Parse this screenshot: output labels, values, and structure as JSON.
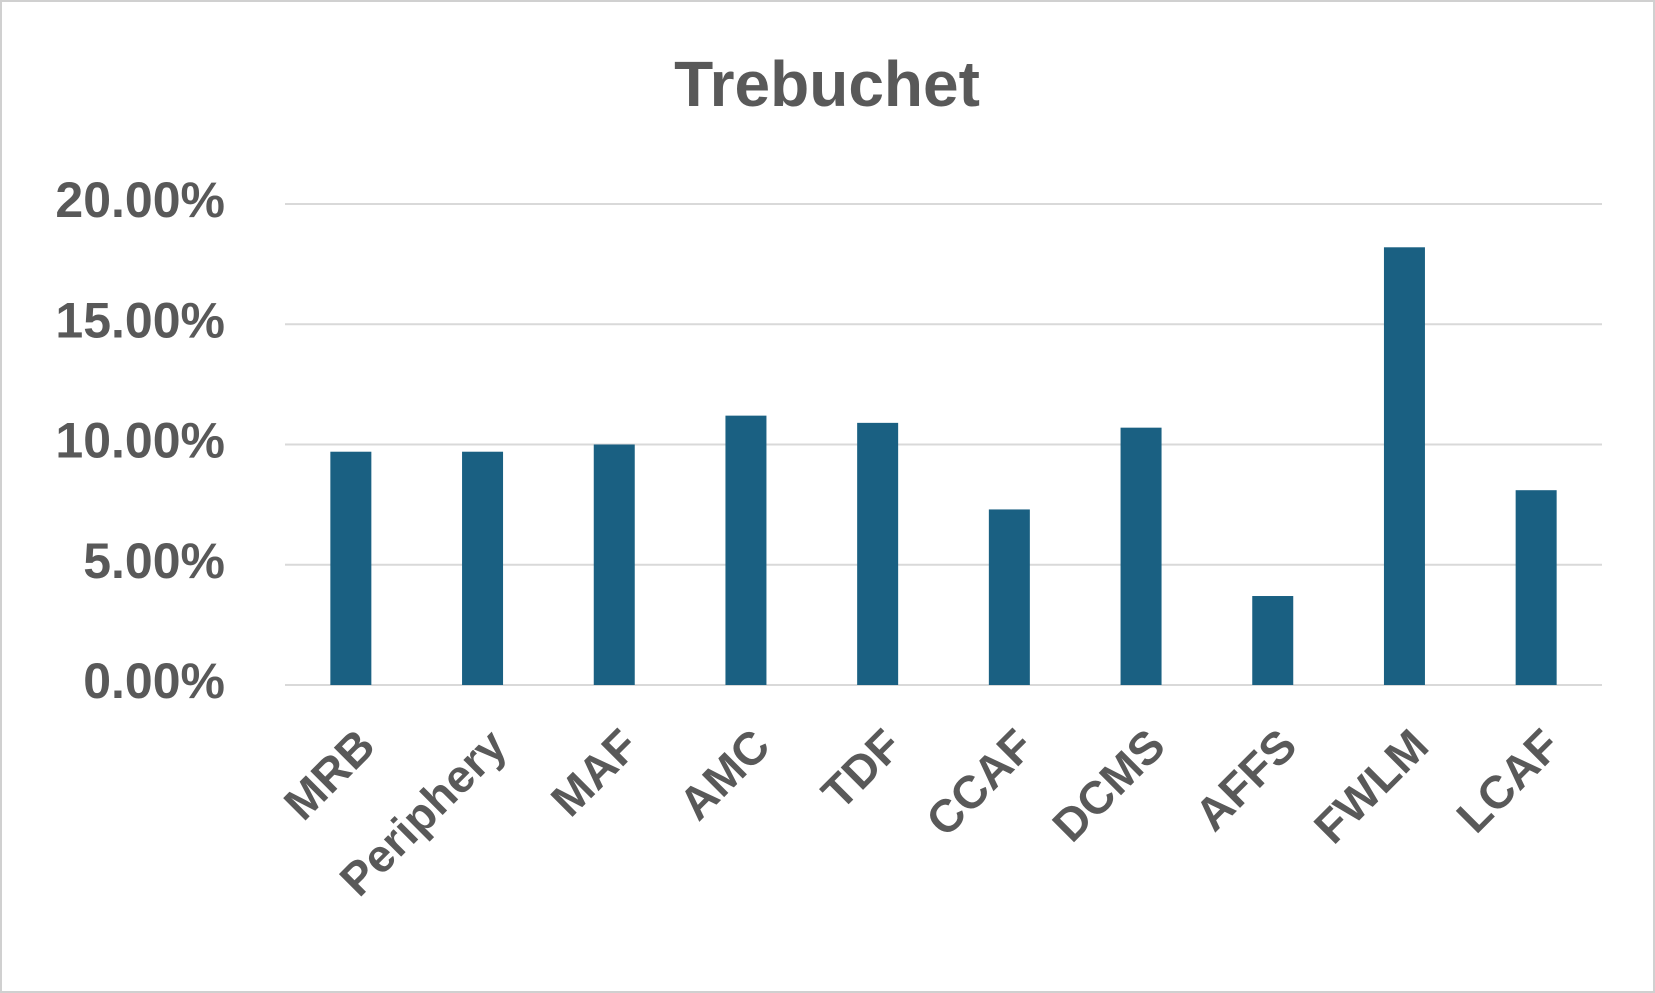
{
  "chart_data": {
    "type": "bar",
    "title": "Trebuchet",
    "categories": [
      "MRB",
      "Periphery",
      "MAF",
      "AMC",
      "TDF",
      "CCAF",
      "DCMS",
      "AFFS",
      "FWLM",
      "LCAF"
    ],
    "values": [
      9.7,
      9.7,
      10.0,
      11.2,
      10.9,
      7.3,
      10.7,
      3.7,
      18.2,
      8.1
    ],
    "color": "#1a6082",
    "ylim": [
      0,
      20
    ],
    "yticks": [
      {
        "value": 0,
        "label": "0.00%"
      },
      {
        "value": 5,
        "label": "5.00%"
      },
      {
        "value": 10,
        "label": "10.00%"
      },
      {
        "value": 15,
        "label": "15.00%"
      },
      {
        "value": 20,
        "label": "20.00%"
      }
    ],
    "grid": true
  }
}
